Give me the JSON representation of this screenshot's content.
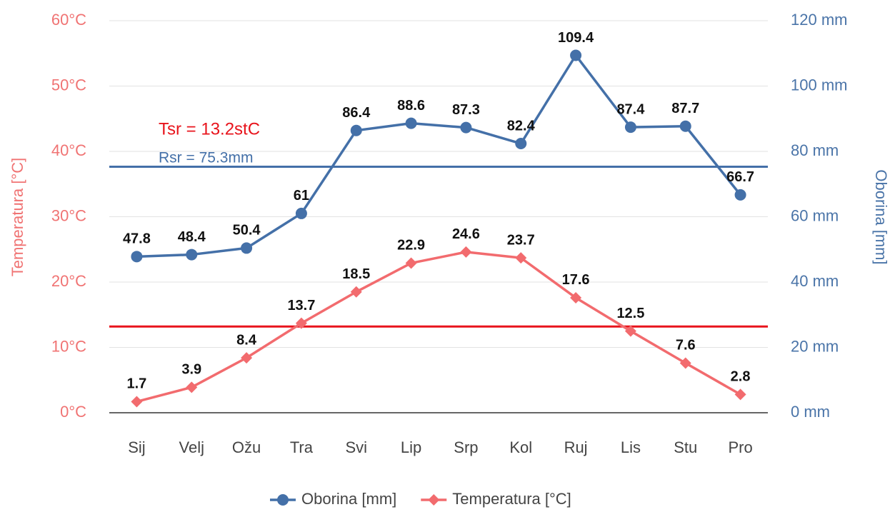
{
  "chart_data": {
    "type": "line",
    "categories": [
      "Sij",
      "Velj",
      "Ožu",
      "Tra",
      "Svi",
      "Lip",
      "Srp",
      "Kol",
      "Ruj",
      "Lis",
      "Stu",
      "Pro"
    ],
    "series": [
      {
        "name": "Oborina [mm]",
        "color": "#4470a8",
        "marker": "circle",
        "axis": "y2",
        "values": [
          47.8,
          48.4,
          50.4,
          61,
          86.4,
          88.6,
          87.3,
          82.4,
          109.4,
          87.4,
          87.7,
          66.7
        ]
      },
      {
        "name": "Temperatura [°C]",
        "color": "#f26b6e",
        "marker": "diamond",
        "axis": "y",
        "values": [
          1.7,
          3.9,
          8.4,
          13.7,
          18.5,
          22.9,
          24.6,
          23.7,
          17.6,
          12.5,
          7.6,
          2.8
        ]
      }
    ],
    "ylabel": "Temperatura [°C]",
    "y2label": "Oborina [mm]",
    "ylim": [
      0,
      60
    ],
    "yticks": [
      {
        "value": 0,
        "label": "0°C"
      },
      {
        "value": 10,
        "label": "10°C"
      },
      {
        "value": 20,
        "label": "20°C"
      },
      {
        "value": 30,
        "label": "30°C"
      },
      {
        "value": 40,
        "label": "40°C"
      },
      {
        "value": 50,
        "label": "50°C"
      },
      {
        "value": 60,
        "label": "60°C"
      }
    ],
    "y2lim": [
      0,
      120
    ],
    "y2ticks": [
      {
        "value": 0,
        "label": "0 mm"
      },
      {
        "value": 20,
        "label": "20 mm"
      },
      {
        "value": 40,
        "label": "40 mm"
      },
      {
        "value": 60,
        "label": "60 mm"
      },
      {
        "value": 80,
        "label": "80 mm"
      },
      {
        "value": 100,
        "label": "100 mm"
      },
      {
        "value": 120,
        "label": "120 mm"
      }
    ],
    "ytick_color": "#f07373",
    "y2tick_color": "#4a74a8",
    "reference_lines": [
      {
        "label": "Tsr = 13.2stC",
        "value": 13.2,
        "axis": "y",
        "color": "#e8141c"
      },
      {
        "label": "Rsr = 75.3mm",
        "value": 75.3,
        "axis": "y2",
        "color": "#4470a8"
      }
    ],
    "grid": true,
    "legend": "bottom"
  }
}
